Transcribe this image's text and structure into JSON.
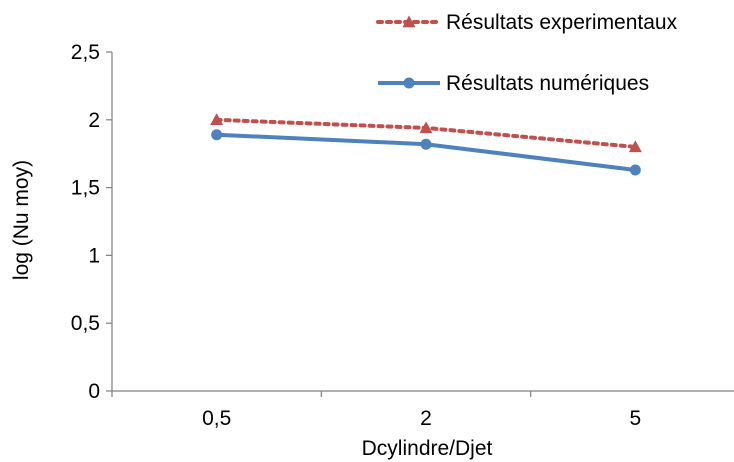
{
  "chart_data": {
    "type": "line",
    "title": "",
    "xlabel": "Dcylindre/Djet",
    "ylabel": "log (Nu moy)",
    "categories": [
      "0,5",
      "2",
      "5"
    ],
    "ylim": [
      0,
      2.5
    ],
    "yticks": [
      {
        "value": 0,
        "label": "0"
      },
      {
        "value": 0.5,
        "label": "0,5"
      },
      {
        "value": 1,
        "label": "1"
      },
      {
        "value": 1.5,
        "label": "1,5"
      },
      {
        "value": 2,
        "label": "2"
      },
      {
        "value": 2.5,
        "label": "2,5"
      }
    ],
    "grid": false,
    "legend_position": "top-right",
    "series": [
      {
        "name": "Résultats experimentaux",
        "values": [
          2.0,
          1.94,
          1.8
        ],
        "color": "#c0504d",
        "line_style": "dotted",
        "marker": "triangle"
      },
      {
        "name": "Résultats numériques",
        "values": [
          1.89,
          1.82,
          1.63
        ],
        "color": "#4f81bd",
        "line_style": "solid",
        "marker": "circle"
      }
    ]
  }
}
